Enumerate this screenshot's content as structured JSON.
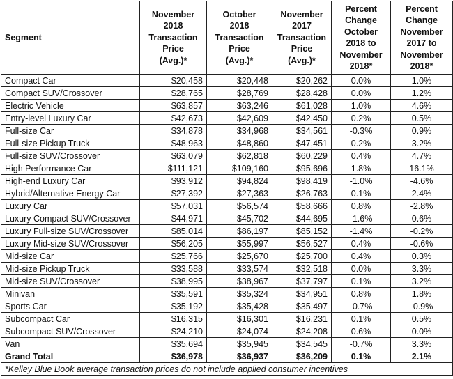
{
  "table": {
    "header": [
      [
        "Segment"
      ],
      [
        "November",
        "2018",
        "Transaction",
        "Price",
        "(Avg.)*"
      ],
      [
        "October",
        "2018",
        "Transaction",
        "Price",
        "(Avg.)*"
      ],
      [
        "November",
        "2017",
        "Transaction",
        "Price",
        "(Avg.)*"
      ],
      [
        "Percent",
        "Change",
        "October",
        "2018 to",
        "November",
        "2018*"
      ],
      [
        "Percent",
        "Change",
        "November",
        "2017 to",
        "November",
        "2018*"
      ]
    ],
    "rows": [
      [
        "Compact Car",
        "$20,458",
        "$20,448",
        "$20,262",
        "0.0%",
        "1.0%"
      ],
      [
        "Compact SUV/Crossover",
        "$28,765",
        "$28,769",
        "$28,428",
        "0.0%",
        "1.2%"
      ],
      [
        "Electric Vehicle",
        "$63,857",
        "$63,246",
        "$61,028",
        "1.0%",
        "4.6%"
      ],
      [
        "Entry-level Luxury Car",
        "$42,673",
        "$42,609",
        "$42,450",
        "0.2%",
        "0.5%"
      ],
      [
        "Full-size Car",
        "$34,878",
        "$34,968",
        "$34,561",
        "-0.3%",
        "0.9%"
      ],
      [
        "Full-size Pickup Truck",
        "$48,963",
        "$48,860",
        "$47,451",
        "0.2%",
        "3.2%"
      ],
      [
        "Full-size SUV/Crossover",
        "$63,079",
        "$62,818",
        "$60,229",
        "0.4%",
        "4.7%"
      ],
      [
        "High Performance Car",
        "$111,121",
        "$109,160",
        "$95,696",
        "1.8%",
        "16.1%"
      ],
      [
        "High-end Luxury Car",
        "$93,912",
        "$94,824",
        "$98,419",
        "-1.0%",
        "-4.6%"
      ],
      [
        "Hybrid/Alternative Energy Car",
        "$27,392",
        "$27,363",
        "$26,763",
        "0.1%",
        "2.4%"
      ],
      [
        "Luxury Car",
        "$57,031",
        "$56,574",
        "$58,666",
        "0.8%",
        "-2.8%"
      ],
      [
        "Luxury Compact SUV/Crossover",
        "$44,971",
        "$45,702",
        "$44,695",
        "-1.6%",
        "0.6%"
      ],
      [
        "Luxury Full-size SUV/Crossover",
        "$85,014",
        "$86,197",
        "$85,152",
        "-1.4%",
        "-0.2%"
      ],
      [
        "Luxury Mid-size SUV/Crossover",
        "$56,205",
        "$55,997",
        "$56,527",
        "0.4%",
        "-0.6%"
      ],
      [
        "Mid-size Car",
        "$25,766",
        "$25,670",
        "$25,700",
        "0.4%",
        "0.3%"
      ],
      [
        "Mid-size Pickup Truck",
        "$33,588",
        "$33,574",
        "$32,518",
        "0.0%",
        "3.3%"
      ],
      [
        "Mid-size SUV/Crossover",
        "$38,995",
        "$38,967",
        "$37,797",
        "0.1%",
        "3.2%"
      ],
      [
        "Minivan",
        "$35,591",
        "$35,324",
        "$34,951",
        "0.8%",
        "1.8%"
      ],
      [
        "Sports Car",
        "$35,192",
        "$35,428",
        "$35,497",
        "-0.7%",
        "-0.9%"
      ],
      [
        "Subcompact Car",
        "$16,315",
        "$16,301",
        "$16,231",
        "0.1%",
        "0.5%"
      ],
      [
        "Subcompact SUV/Crossover",
        "$24,210",
        "$24,074",
        "$24,208",
        "0.6%",
        "0.0%"
      ],
      [
        "Van",
        "$35,694",
        "$35,945",
        "$34,545",
        "-0.7%",
        "3.3%"
      ]
    ],
    "total": [
      "Grand Total",
      "$36,978",
      "$36,937",
      "$36,209",
      "0.1%",
      "2.1%"
    ],
    "footnote": "*Kelley Blue Book average transaction prices do not include applied consumer incentives"
  }
}
